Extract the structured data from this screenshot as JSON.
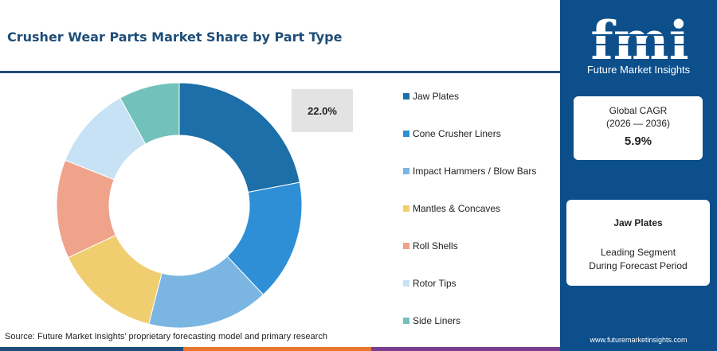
{
  "title": "Crusher Wear Parts Market Share by Part Type",
  "source": "Source: Future Market Insights’ proprietary forecasting model and primary research",
  "callout_label": "22.0%",
  "chart_data": {
    "type": "pie",
    "title": "Crusher Wear Parts Market Share by Part Type",
    "categories": [
      "Jaw Plates",
      "Cone Crusher Liners",
      "Impact Hammers / Blow Bars",
      "Mantles & Concaves",
      "Roll Shells",
      "Rotor Tips",
      "Side Liners"
    ],
    "values": [
      22.0,
      16.0,
      16.0,
      14.0,
      13.0,
      11.0,
      8.0
    ],
    "colors": [
      "#1c6fa8",
      "#2e8fd6",
      "#7bb6e3",
      "#f0cd6e",
      "#eea38a",
      "#c6e2f4",
      "#72c2bb"
    ],
    "donut": true,
    "legend_position": "right",
    "data_labels": [
      "22.0%"
    ]
  },
  "sidebar": {
    "logo_text": "fmi",
    "logo_subtitle": "Future Market Insights",
    "cagr_label_line1": "Global CAGR",
    "cagr_label_line2": "(2026 — 2036)",
    "cagr_value": "5.9%",
    "segment_name": "Jaw Plates",
    "segment_desc_line1": "Leading Segment",
    "segment_desc_line2": "During Forecast Period",
    "website": "www.futuremarketinsights.com"
  },
  "colors": {
    "brand_navy": "#0d4f8b",
    "title_blue": "#1f4e79",
    "strip_blue": "#1f4e79",
    "strip_orange": "#e8772e",
    "strip_purple": "#7a3e8f"
  }
}
